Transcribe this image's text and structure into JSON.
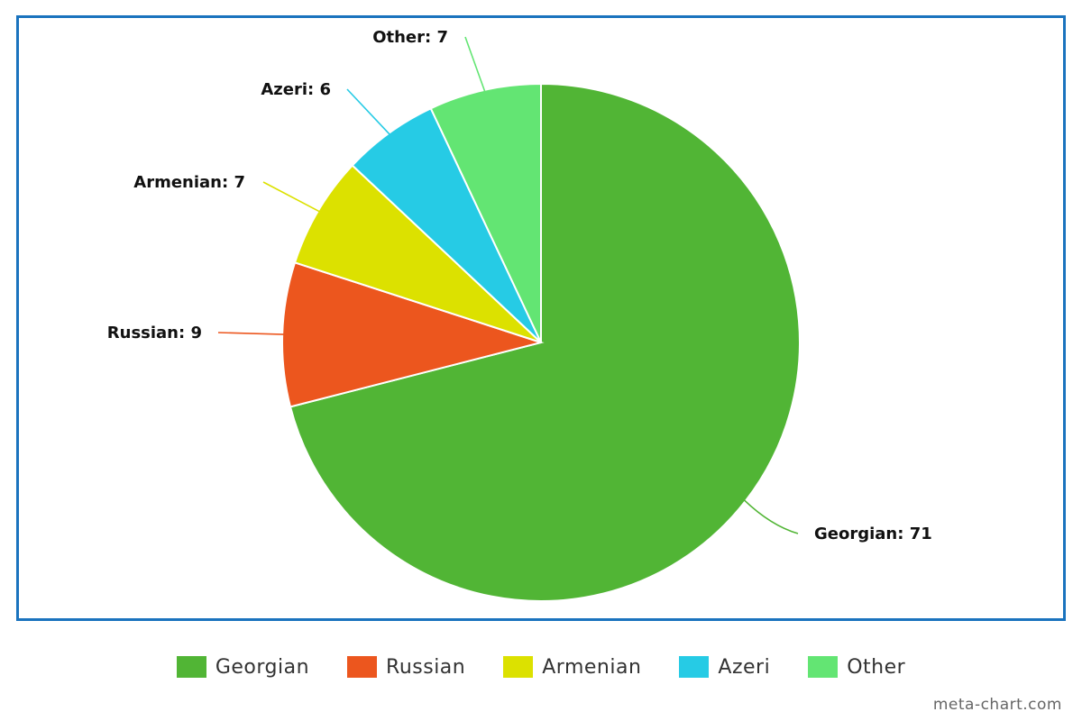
{
  "chart_data": {
    "type": "pie",
    "title": "",
    "start": "top",
    "direction": "clockwise",
    "slices": [
      {
        "name": "Georgian",
        "value": 71,
        "label": "Georgian: 71",
        "color": "#51b535"
      },
      {
        "name": "Russian",
        "value": 9,
        "label": "Russian: 9",
        "color": "#ec561e"
      },
      {
        "name": "Armenian",
        "value": 7,
        "label": "Armenian: 7",
        "color": "#dce100"
      },
      {
        "name": "Azeri",
        "value": 6,
        "label": "Azeri: 6",
        "color": "#26cbe5"
      },
      {
        "name": "Other",
        "value": 7,
        "label": "Other: 7",
        "color": "#63e573"
      }
    ],
    "legend": {
      "position": "bottom",
      "items": [
        "Georgian",
        "Russian",
        "Armenian",
        "Azeri",
        "Other"
      ]
    }
  },
  "frame": {
    "border_color": "#1a73be"
  },
  "watermark": "meta-chart.com"
}
